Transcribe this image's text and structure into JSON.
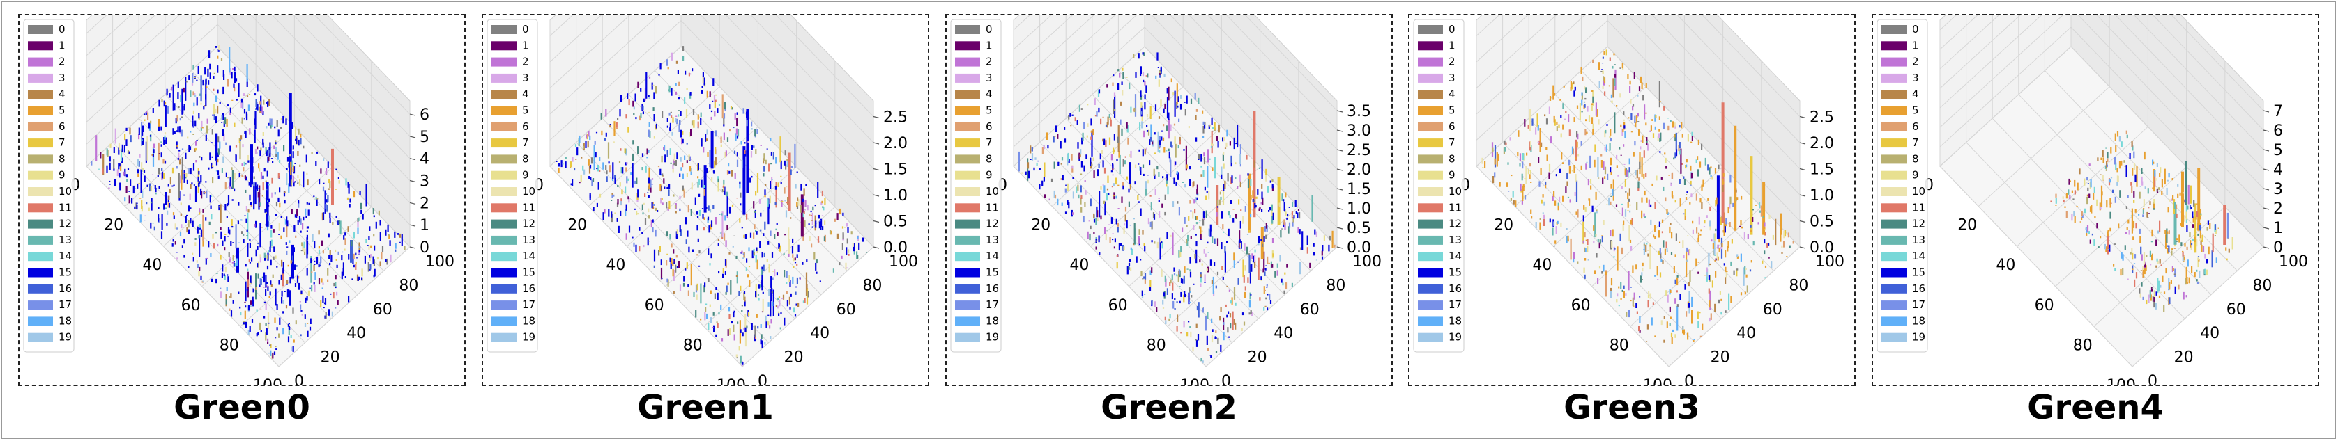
{
  "legend_labels": [
    "0",
    "1",
    "2",
    "3",
    "4",
    "5",
    "6",
    "7",
    "8",
    "9",
    "10",
    "11",
    "12",
    "13",
    "14",
    "15",
    "16",
    "17",
    "18",
    "19"
  ],
  "legend_colors": [
    "#808080",
    "#6a006a",
    "#c074d6",
    "#d8a8e8",
    "#b8864a",
    "#e8a030",
    "#e0a070",
    "#e8c840",
    "#b8b070",
    "#e8e090",
    "#ece4b0",
    "#e07868",
    "#4a8a82",
    "#68b8b0",
    "#78d8d8",
    "#0000e0",
    "#4060d8",
    "#7890e8",
    "#60b0f8",
    "#a0c8e8"
  ],
  "panels": [
    {
      "title": "Green0",
      "zlim": [
        0,
        6.6
      ],
      "zticks": [
        "0",
        "1",
        "2",
        "3",
        "4",
        "5",
        "6"
      ]
    },
    {
      "title": "Green1",
      "zlim": [
        0,
        2.8
      ],
      "zticks": [
        "0.0",
        "0.5",
        "1.0",
        "1.5",
        "2.0",
        "2.5"
      ]
    },
    {
      "title": "Green2",
      "zlim": [
        0,
        3.75
      ],
      "zticks": [
        "0.0",
        "0.5",
        "1.0",
        "1.5",
        "2.0",
        "2.5",
        "3.0",
        "3.5"
      ]
    },
    {
      "title": "Green3",
      "zlim": [
        0,
        2.8
      ],
      "zticks": [
        "0.0",
        "0.5",
        "1.0",
        "1.5",
        "2.0",
        "2.5"
      ]
    },
    {
      "title": "Green4",
      "zlim": [
        0,
        7.5
      ],
      "zticks": [
        "0",
        "1",
        "2",
        "3",
        "4",
        "5",
        "6",
        "7"
      ]
    }
  ],
  "x_ticks": [
    "0",
    "20",
    "40",
    "60",
    "80",
    "100"
  ],
  "y_ticks": [
    "0",
    "20",
    "40",
    "60",
    "80",
    "100"
  ],
  "chart_data": [
    {
      "type": "bar3d",
      "title": "Green0",
      "xlim": [
        0,
        100
      ],
      "ylim": [
        0,
        100
      ],
      "zlim": [
        0,
        6.6
      ],
      "series_names": [
        "0",
        "1",
        "2",
        "3",
        "4",
        "5",
        "6",
        "7",
        "8",
        "9",
        "10",
        "11",
        "12",
        "13",
        "14",
        "15",
        "16",
        "17",
        "18",
        "19"
      ],
      "bars": [
        {
          "x": 55,
          "y": 75,
          "z": 4.2,
          "series": "15"
        },
        {
          "x": 70,
          "y": 85,
          "z": 2.5,
          "series": "11"
        },
        {
          "x": 60,
          "y": 50,
          "z": 2.0,
          "series": "15"
        },
        {
          "x": 45,
          "y": 60,
          "z": 1.8,
          "series": "15"
        },
        {
          "x": 80,
          "y": 40,
          "z": 1.5,
          "series": "15"
        },
        {
          "x": 30,
          "y": 55,
          "z": 1.2,
          "series": "15"
        },
        {
          "x": 90,
          "y": 70,
          "z": 1.0,
          "series": "16"
        },
        {
          "x": 65,
          "y": 20,
          "z": 1.1,
          "series": "15"
        }
      ]
    },
    {
      "type": "bar3d",
      "title": "Green1",
      "xlim": [
        0,
        100
      ],
      "ylim": [
        0,
        100
      ],
      "zlim": [
        0,
        2.8
      ],
      "series_names": [
        "0",
        "1",
        "2",
        "3",
        "4",
        "5",
        "6",
        "7",
        "8",
        "9",
        "10",
        "11",
        "12",
        "13",
        "14",
        "15",
        "16",
        "17",
        "18",
        "19"
      ],
      "bars": [
        {
          "x": 55,
          "y": 70,
          "z": 1.6,
          "series": "15"
        },
        {
          "x": 60,
          "y": 60,
          "z": 1.3,
          "series": "15"
        },
        {
          "x": 70,
          "y": 80,
          "z": 1.1,
          "series": "11"
        },
        {
          "x": 50,
          "y": 45,
          "z": 0.9,
          "series": "15"
        },
        {
          "x": 80,
          "y": 75,
          "z": 0.8,
          "series": "1"
        },
        {
          "x": 40,
          "y": 65,
          "z": 0.7,
          "series": "15"
        }
      ]
    },
    {
      "type": "bar3d",
      "title": "Green2",
      "xlim": [
        0,
        100
      ],
      "ylim": [
        0,
        100
      ],
      "zlim": [
        0,
        3.75
      ],
      "series_names": [
        "0",
        "1",
        "2",
        "3",
        "4",
        "5",
        "6",
        "7",
        "8",
        "9",
        "10",
        "11",
        "12",
        "13",
        "14",
        "15",
        "16",
        "17",
        "18",
        "19"
      ],
      "bars": [
        {
          "x": 72,
          "y": 78,
          "z": 2.7,
          "series": "11"
        },
        {
          "x": 75,
          "y": 70,
          "z": 1.5,
          "series": "5"
        },
        {
          "x": 80,
          "y": 85,
          "z": 1.2,
          "series": "7"
        },
        {
          "x": 65,
          "y": 60,
          "z": 1.0,
          "series": "11"
        },
        {
          "x": 85,
          "y": 65,
          "z": 0.8,
          "series": "5"
        }
      ]
    },
    {
      "type": "bar3d",
      "title": "Green3",
      "xlim": [
        0,
        100
      ],
      "ylim": [
        0,
        100
      ],
      "zlim": [
        0,
        2.8
      ],
      "series_names": [
        "0",
        "1",
        "2",
        "3",
        "4",
        "5",
        "6",
        "7",
        "8",
        "9",
        "10",
        "11",
        "12",
        "13",
        "14",
        "15",
        "16",
        "17",
        "18",
        "19"
      ],
      "bars": [
        {
          "x": 75,
          "y": 78,
          "z": 2.3,
          "series": "11"
        },
        {
          "x": 80,
          "y": 80,
          "z": 2.0,
          "series": "5"
        },
        {
          "x": 85,
          "y": 85,
          "z": 1.5,
          "series": "7"
        },
        {
          "x": 78,
          "y": 70,
          "z": 1.2,
          "series": "15"
        },
        {
          "x": 88,
          "y": 90,
          "z": 1.0,
          "series": "5"
        }
      ]
    },
    {
      "type": "bar3d",
      "title": "Green4",
      "xlim": [
        0,
        100
      ],
      "ylim": [
        0,
        100
      ],
      "zlim": [
        0,
        7.5
      ],
      "series_names": [
        "0",
        "1",
        "2",
        "3",
        "4",
        "5",
        "6",
        "7",
        "8",
        "9",
        "10",
        "11",
        "12",
        "13",
        "14",
        "15",
        "16",
        "17",
        "18",
        "19"
      ],
      "bars": [
        {
          "x": 75,
          "y": 75,
          "z": 2.8,
          "series": "5"
        },
        {
          "x": 80,
          "y": 80,
          "z": 3.2,
          "series": "5"
        },
        {
          "x": 85,
          "y": 70,
          "z": 2.5,
          "series": "7"
        },
        {
          "x": 70,
          "y": 85,
          "z": 2.2,
          "series": "12"
        },
        {
          "x": 90,
          "y": 85,
          "z": 2.0,
          "series": "11"
        },
        {
          "x": 78,
          "y": 65,
          "z": 1.8,
          "series": "13"
        }
      ]
    }
  ]
}
